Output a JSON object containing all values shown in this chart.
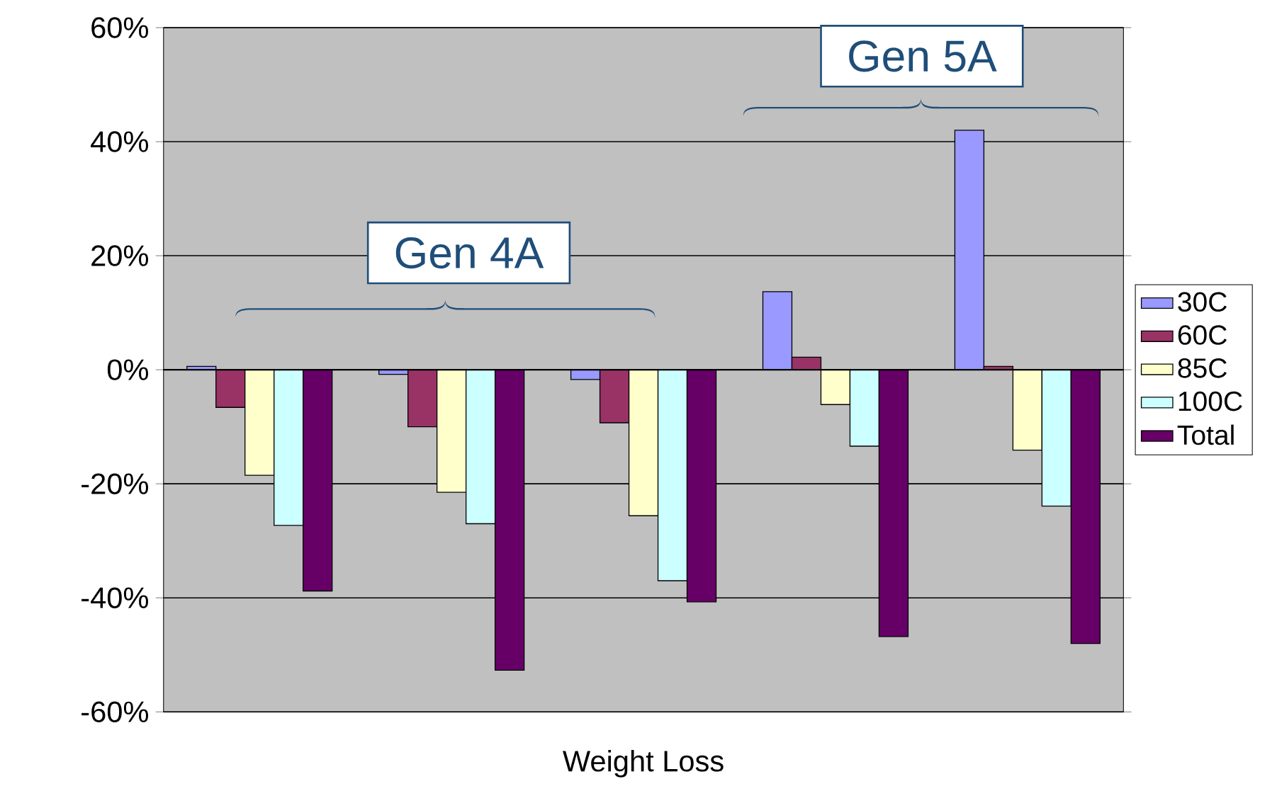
{
  "chart_data": {
    "type": "bar",
    "xlabel": "Weight Loss",
    "categories": [
      null,
      null,
      null,
      null,
      null
    ],
    "series": [
      {
        "name": "30C",
        "color": "#9999ff",
        "values": [
          0.6,
          -0.8,
          -1.7,
          13.7,
          42
        ]
      },
      {
        "name": "60C",
        "color": "#993366",
        "values": [
          -6.6,
          -10,
          -9.3,
          2.2,
          0.6
        ]
      },
      {
        "name": "85C",
        "color": "#ffffcc",
        "values": [
          -18.5,
          -21.5,
          -25.6,
          -6.1,
          -14.1
        ]
      },
      {
        "name": "100C",
        "color": "#ccffff",
        "values": [
          -27.3,
          -27,
          -37,
          -13.4,
          -23.9
        ]
      },
      {
        "name": "Total",
        "color": "#660066",
        "values": [
          -38.8,
          -52.7,
          -40.7,
          -46.8,
          -48
        ]
      }
    ],
    "ylim": [
      -60,
      60
    ],
    "yticks": [
      {
        "value": -60,
        "label": "-60%"
      },
      {
        "value": -40,
        "label": "-40%"
      },
      {
        "value": -20,
        "label": "-20%"
      },
      {
        "value": 0,
        "label": "0%"
      },
      {
        "value": 20,
        "label": "20%"
      },
      {
        "value": 40,
        "label": "40%"
      },
      {
        "value": 60,
        "label": "60%"
      }
    ],
    "grid": "y",
    "legend": "right",
    "annotations": [
      "Gen 4A",
      "Gen 5A"
    ]
  }
}
